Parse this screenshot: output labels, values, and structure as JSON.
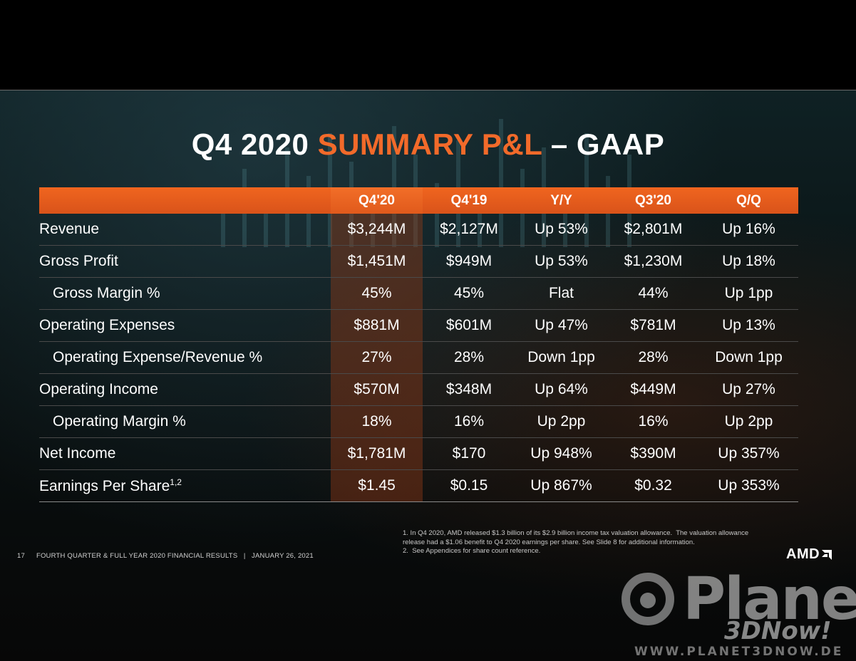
{
  "slide": {
    "title_prefix": "Q4 2020 ",
    "title_accent": "SUMMARY P&L",
    "title_suffix": " – GAAP"
  },
  "table": {
    "headers": [
      "",
      "Q4'20",
      "Q4'19",
      "Y/Y",
      "Q3'20",
      "Q/Q"
    ],
    "rows": [
      {
        "label": "Revenue",
        "sup": "",
        "values": [
          "$3,244M",
          "$2,127M",
          "Up 53%",
          "$2,801M",
          "Up 16%"
        ]
      },
      {
        "label": "Gross Profit",
        "sup": "",
        "values": [
          "$1,451M",
          "$949M",
          "Up 53%",
          "$1,230M",
          "Up 18%"
        ]
      },
      {
        "label": "Gross Margin %",
        "sup": "",
        "values": [
          "45%",
          "45%",
          "Flat",
          "44%",
          "Up 1pp"
        ]
      },
      {
        "label": "Operating Expenses",
        "sup": "",
        "values": [
          "$881M",
          "$601M",
          "Up 47%",
          "$781M",
          "Up 13%"
        ]
      },
      {
        "label": "Operating Expense/Revenue %",
        "sup": "",
        "values": [
          "27%",
          "28%",
          "Down 1pp",
          "28%",
          "Down 1pp"
        ]
      },
      {
        "label": "Operating Income",
        "sup": "",
        "values": [
          "$570M",
          "$348M",
          "Up 64%",
          "$449M",
          "Up 27%"
        ]
      },
      {
        "label": "Operating Margin %",
        "sup": "",
        "values": [
          "18%",
          "16%",
          "Up 2pp",
          "16%",
          "Up 2pp"
        ]
      },
      {
        "label": "Net Income",
        "sup": "",
        "values": [
          "$1,781M",
          "$170",
          "Up 948%",
          "$390M",
          "Up 357%"
        ]
      },
      {
        "label": "Earnings Per Share",
        "sup": "1,2",
        "values": [
          "$1.45",
          "$0.15",
          "Up 867%",
          "$0.32",
          "Up 353%"
        ]
      }
    ]
  },
  "footnotes": [
    "1. In Q4 2020, AMD released $1.3 billion of its $2.9 billion income tax valuation allowance.  The valuation allowance release had a $1.06 benefit to Q4 2020 earnings per share. See Slide 8 for additional information.",
    "2.  See Appendices for share count reference."
  ],
  "footer": {
    "page_number": "17",
    "text": "FOURTH QUARTER & FULL YEAR 2020 FINANCIAL RESULTS   |   JANUARY 26, 2021"
  },
  "logo": {
    "text": "AMD"
  },
  "watermark": {
    "name": "Planet",
    "sub": "3DNow!",
    "url": "WWW.PLANET3DNOW.DE"
  },
  "colors": {
    "accent": "#f26a2a",
    "header_bg": "#e85d1d",
    "highlight_col": "#963c19"
  }
}
